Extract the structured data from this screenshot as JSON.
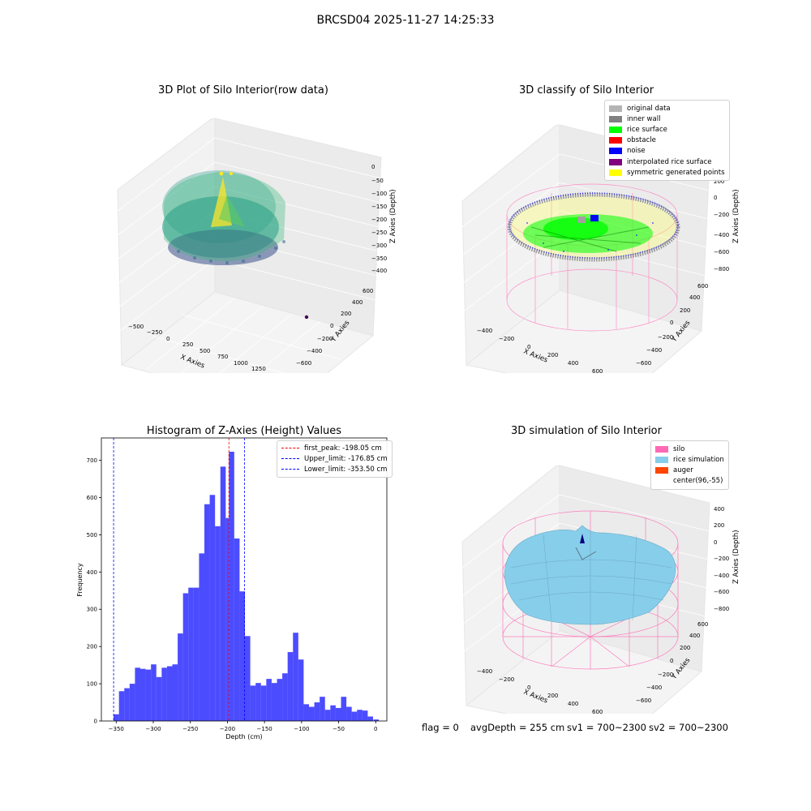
{
  "figure": {
    "suptitle": "BRCSD04 2025-11-27 14:25:33",
    "footer": {
      "flag": "flag = 0",
      "avg_depth": "avgDepth = 255 cm",
      "sv1": "sv1 = 700~2300",
      "sv2": "sv2 = 700~2300"
    }
  },
  "chart_data": [
    {
      "type": "scatter3d",
      "title": "3D Plot of Silo Interior(row data)",
      "xlabel": "X Axies",
      "ylabel": "Y Axies",
      "zlabel": "Z Axies (Depth)",
      "x_ticks": [
        "−500",
        "−250",
        "0",
        "250",
        "500",
        "750",
        "1000",
        "1250"
      ],
      "y_ticks": [
        "−600",
        "−400",
        "−200",
        "0",
        "200",
        "400",
        "600"
      ],
      "z_ticks": [
        "0",
        "−50",
        "−100",
        "−150",
        "−200",
        "−250",
        "−300",
        "−350",
        "−400"
      ],
      "colormap": "viridis"
    },
    {
      "type": "scatter3d",
      "title": "3D classify of Silo Interior",
      "xlabel": "X Axies",
      "ylabel": "Y Axies",
      "zlabel": "Z Axies (Depth)",
      "x_ticks": [
        "−400",
        "−200",
        "0",
        "200",
        "400",
        "600"
      ],
      "y_ticks": [
        "−600",
        "−400",
        "−200",
        "0",
        "200",
        "400",
        "600"
      ],
      "z_ticks": [
        "200",
        "0",
        "−200",
        "−400",
        "−600",
        "−800"
      ],
      "legend": [
        {
          "label": "original data",
          "color": "#b4b4b4"
        },
        {
          "label": "inner wall",
          "color": "#808080"
        },
        {
          "label": "rice surface",
          "color": "#00ff00"
        },
        {
          "label": "obstacle",
          "color": "#ff0000"
        },
        {
          "label": "noise",
          "color": "#0000ff"
        },
        {
          "label": "interpolated rice surface",
          "color": "#800080"
        },
        {
          "label": "symmetric generated points",
          "color": "#ffff00"
        }
      ]
    },
    {
      "type": "bar",
      "title": "Histogram of Z-Axies (Height) Values",
      "xlabel": "Depth (cm)",
      "ylabel": "Frequency",
      "xlim": [
        -370,
        15
      ],
      "ylim": [
        0,
        760
      ],
      "x_ticks": [
        -350,
        -300,
        -250,
        -200,
        -150,
        -100,
        -50,
        0
      ],
      "y_ticks": [
        0,
        100,
        200,
        300,
        400,
        500,
        600,
        700
      ],
      "bar_color": "#0000ff",
      "bin_width": 7.2,
      "bins": [
        {
          "left": -353.5,
          "count": 18
        },
        {
          "left": -346.3,
          "count": 80
        },
        {
          "left": -339.1,
          "count": 88
        },
        {
          "left": -331.9,
          "count": 100
        },
        {
          "left": -324.7,
          "count": 143
        },
        {
          "left": -317.5,
          "count": 140
        },
        {
          "left": -310.3,
          "count": 138
        },
        {
          "left": -303.1,
          "count": 152
        },
        {
          "left": -295.9,
          "count": 118
        },
        {
          "left": -288.7,
          "count": 143
        },
        {
          "left": -281.5,
          "count": 147
        },
        {
          "left": -274.3,
          "count": 152
        },
        {
          "left": -267.1,
          "count": 235
        },
        {
          "left": -259.9,
          "count": 343
        },
        {
          "left": -252.7,
          "count": 358
        },
        {
          "left": -245.5,
          "count": 358
        },
        {
          "left": -238.3,
          "count": 450
        },
        {
          "left": -231.1,
          "count": 582
        },
        {
          "left": -223.9,
          "count": 607
        },
        {
          "left": -216.7,
          "count": 523
        },
        {
          "left": -209.5,
          "count": 683
        },
        {
          "left": -202.3,
          "count": 545
        },
        {
          "left": -198.0,
          "count": 723
        },
        {
          "left": -190.8,
          "count": 490
        },
        {
          "left": -183.6,
          "count": 348
        },
        {
          "left": -176.4,
          "count": 228
        },
        {
          "left": -169.2,
          "count": 95
        },
        {
          "left": -162.0,
          "count": 102
        },
        {
          "left": -154.8,
          "count": 95
        },
        {
          "left": -147.6,
          "count": 113
        },
        {
          "left": -140.4,
          "count": 102
        },
        {
          "left": -133.2,
          "count": 113
        },
        {
          "left": -126.0,
          "count": 128
        },
        {
          "left": -118.8,
          "count": 185
        },
        {
          "left": -111.6,
          "count": 237
        },
        {
          "left": -104.4,
          "count": 165
        },
        {
          "left": -97.2,
          "count": 45
        },
        {
          "left": -90.0,
          "count": 38
        },
        {
          "left": -82.8,
          "count": 50
        },
        {
          "left": -75.6,
          "count": 65
        },
        {
          "left": -68.4,
          "count": 30
        },
        {
          "left": -61.2,
          "count": 42
        },
        {
          "left": -54.0,
          "count": 35
        },
        {
          "left": -46.8,
          "count": 65
        },
        {
          "left": -39.6,
          "count": 38
        },
        {
          "left": -32.4,
          "count": 25
        },
        {
          "left": -25.2,
          "count": 30
        },
        {
          "left": -18.0,
          "count": 28
        },
        {
          "left": -10.8,
          "count": 12
        },
        {
          "left": -3.6,
          "count": 0
        },
        {
          "left": -3.0,
          "count": 4
        }
      ],
      "vlines": [
        {
          "label": "first_peak: -198.05 cm",
          "x": -198.05,
          "color": "#ff0000"
        },
        {
          "label": "Upper_limit: -176.85 cm",
          "x": -176.85,
          "color": "#0000ff"
        },
        {
          "label": "Lower_limit: -353.50 cm",
          "x": -353.5,
          "color": "#0000ff"
        }
      ]
    },
    {
      "type": "surface3d",
      "title": "3D simulation of Silo Interior",
      "xlabel": "X Axies",
      "ylabel": "Y Axies",
      "zlabel": "Z Axies (Depth)",
      "x_ticks": [
        "−400",
        "−200",
        "0",
        "200",
        "400",
        "600"
      ],
      "y_ticks": [
        "−600",
        "−400",
        "−200",
        "0",
        "200",
        "400",
        "600"
      ],
      "z_ticks": [
        "400",
        "200",
        "0",
        "−200",
        "−400",
        "−600",
        "−800"
      ],
      "legend": [
        {
          "label": "silo",
          "color": "#ff69b4"
        },
        {
          "label": "rice simulation",
          "color": "#87ceeb"
        },
        {
          "label": "auger",
          "color": "#ff4500"
        },
        {
          "label": "center(96,-55)",
          "color": "#ffffff"
        }
      ]
    }
  ]
}
